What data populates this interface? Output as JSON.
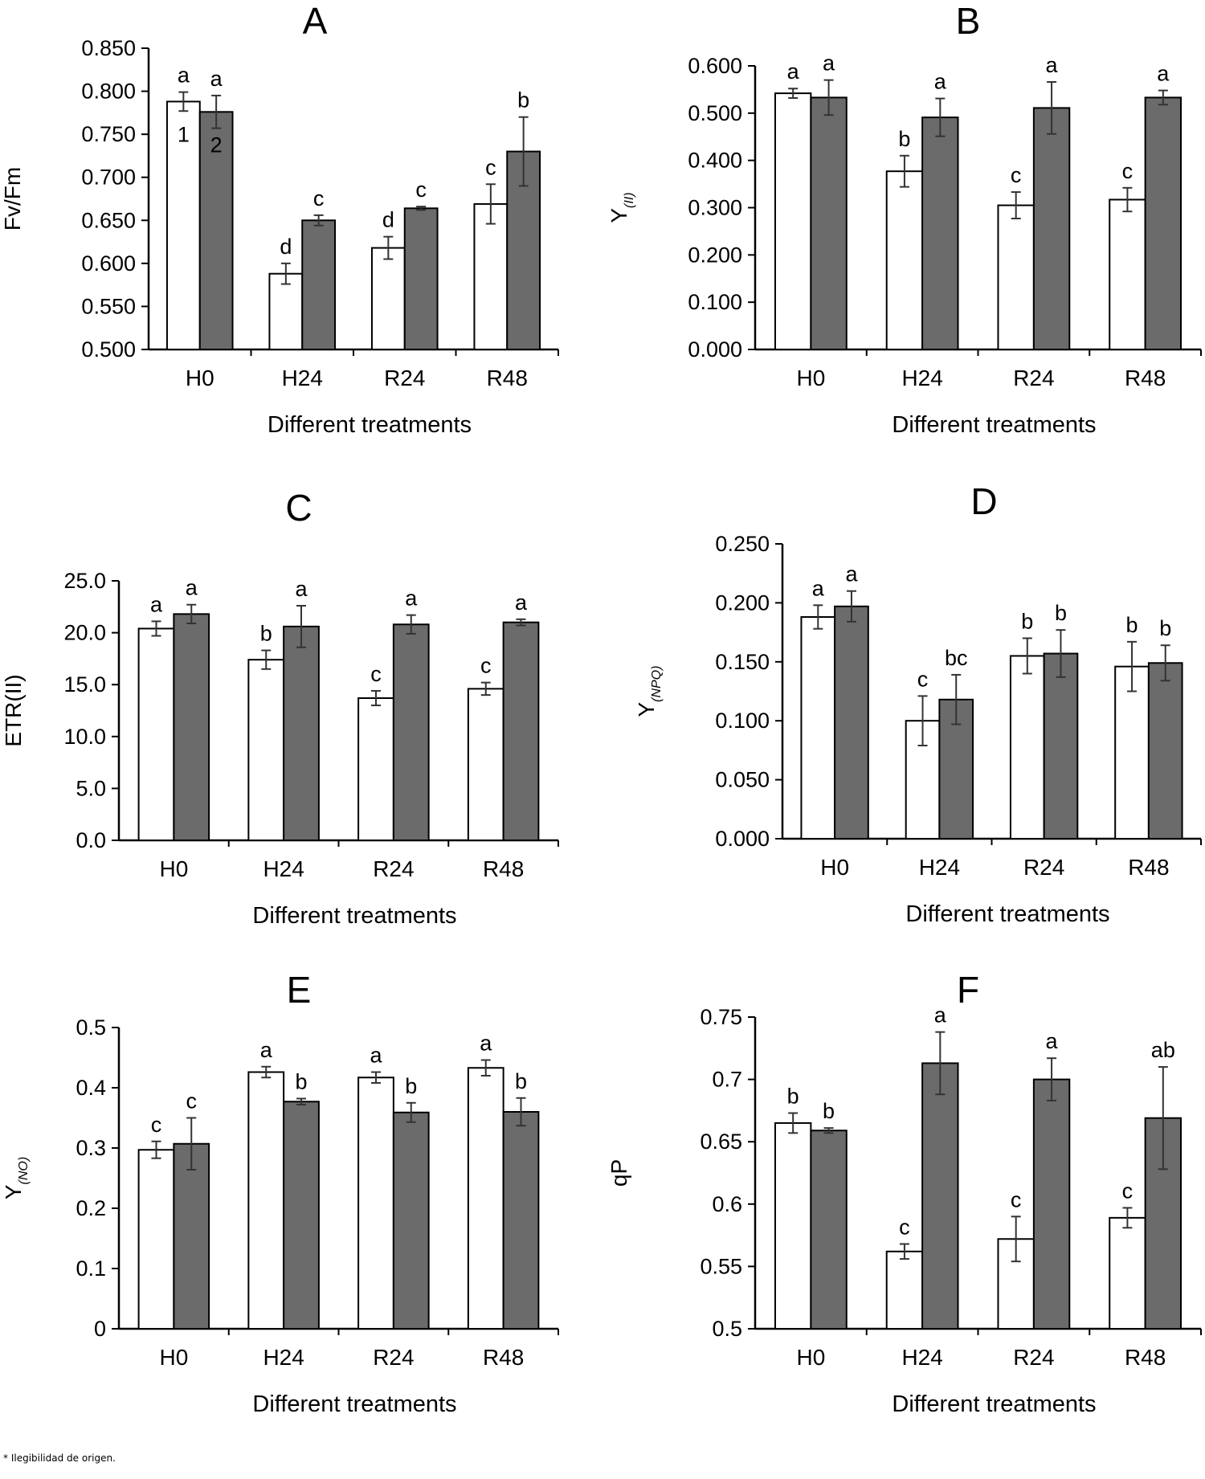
{
  "footnote": "* Ilegibilidad de origen.",
  "colors": {
    "series1": "#ffffff",
    "series2": "#6b6b6b",
    "axis": "#000000",
    "errorbar": "#333333"
  },
  "chart_data": [
    {
      "panel": "A",
      "type": "bar",
      "title": "A",
      "ylabel": "Fv/Fm",
      "ylabel_sub": "",
      "xlabel": "Different treatments",
      "categories": [
        "H0",
        "H24",
        "R24",
        "R48"
      ],
      "ylim": [
        0.5,
        0.85
      ],
      "yticks": [
        "0.500",
        "0.550",
        "0.600",
        "0.650",
        "0.700",
        "0.750",
        "0.800",
        "0.850"
      ],
      "series_markers": [
        "1",
        "2"
      ],
      "series": [
        {
          "name": "1",
          "values": [
            0.788,
            0.588,
            0.618,
            0.669
          ],
          "errors": [
            0.011,
            0.012,
            0.013,
            0.023
          ],
          "letters": [
            "a",
            "d",
            "d",
            "c"
          ]
        },
        {
          "name": "2",
          "values": [
            0.776,
            0.65,
            0.664,
            0.73
          ],
          "errors": [
            0.019,
            0.006,
            0.002,
            0.04
          ],
          "letters": [
            "a",
            "c",
            "c",
            "b"
          ]
        }
      ]
    },
    {
      "panel": "B",
      "type": "bar",
      "title": "B",
      "ylabel": "Y",
      "ylabel_sub": "(II)",
      "xlabel": "Different treatments",
      "categories": [
        "H0",
        "H24",
        "R24",
        "R48"
      ],
      "ylim": [
        0,
        0.6
      ],
      "yticks": [
        "0.000",
        "0.100",
        "0.200",
        "0.300",
        "0.400",
        "0.500",
        "0.600"
      ],
      "series_markers": [],
      "series": [
        {
          "name": "1",
          "values": [
            0.542,
            0.377,
            0.305,
            0.317
          ],
          "errors": [
            0.01,
            0.033,
            0.028,
            0.025
          ],
          "letters": [
            "a",
            "b",
            "c",
            "c"
          ]
        },
        {
          "name": "2",
          "values": [
            0.533,
            0.491,
            0.511,
            0.533
          ],
          "errors": [
            0.037,
            0.04,
            0.055,
            0.015
          ],
          "letters": [
            "a",
            "a",
            "a",
            "a"
          ]
        }
      ]
    },
    {
      "panel": "C",
      "type": "bar",
      "title": "C",
      "ylabel": "ETR(II)",
      "ylabel_sub": "",
      "xlabel": "Different treatments",
      "categories": [
        "H0",
        "H24",
        "R24",
        "R48"
      ],
      "ylim": [
        0,
        25
      ],
      "yticks": [
        "0.0",
        "5.0",
        "10.0",
        "15.0",
        "20.0",
        "25.0"
      ],
      "series_markers": [],
      "series": [
        {
          "name": "1",
          "values": [
            20.4,
            17.4,
            13.7,
            14.6
          ],
          "errors": [
            0.7,
            0.9,
            0.7,
            0.6
          ],
          "letters": [
            "a",
            "b",
            "c",
            "c"
          ]
        },
        {
          "name": "2",
          "values": [
            21.8,
            20.6,
            20.8,
            21.0
          ],
          "errors": [
            0.9,
            2.0,
            0.9,
            0.3
          ],
          "letters": [
            "a",
            "a",
            "a",
            "a"
          ]
        }
      ]
    },
    {
      "panel": "D",
      "type": "bar",
      "title": "D",
      "ylabel": "Y",
      "ylabel_sub": "(NPQ)",
      "xlabel": "Different treatments",
      "categories": [
        "H0",
        "H24",
        "R24",
        "R48"
      ],
      "ylim": [
        0,
        0.25
      ],
      "yticks": [
        "0.000",
        "0.050",
        "0.100",
        "0.150",
        "0.200",
        "0.250"
      ],
      "series_markers": [],
      "series": [
        {
          "name": "1",
          "values": [
            0.188,
            0.1,
            0.155,
            0.146
          ],
          "errors": [
            0.01,
            0.021,
            0.015,
            0.021
          ],
          "letters": [
            "a",
            "c",
            "b",
            "b"
          ]
        },
        {
          "name": "2",
          "values": [
            0.197,
            0.118,
            0.157,
            0.149
          ],
          "errors": [
            0.013,
            0.021,
            0.02,
            0.015
          ],
          "letters": [
            "a",
            "bc",
            "b",
            "b"
          ]
        }
      ]
    },
    {
      "panel": "E",
      "type": "bar",
      "title": "E",
      "ylabel": "Y",
      "ylabel_sub": "(NO)",
      "xlabel": "Different treatments",
      "categories": [
        "H0",
        "H24",
        "R24",
        "R48"
      ],
      "ylim": [
        0,
        0.5
      ],
      "yticks": [
        "0",
        "0.1",
        "0.2",
        "0.3",
        "0.4",
        "0.5"
      ],
      "series_markers": [],
      "series": [
        {
          "name": "1",
          "values": [
            0.297,
            0.426,
            0.417,
            0.433
          ],
          "errors": [
            0.014,
            0.009,
            0.009,
            0.013
          ],
          "letters": [
            "c",
            "a",
            "a",
            "a"
          ]
        },
        {
          "name": "2",
          "values": [
            0.307,
            0.377,
            0.359,
            0.36
          ],
          "errors": [
            0.043,
            0.005,
            0.016,
            0.023
          ],
          "letters": [
            "c",
            "b",
            "b",
            "b"
          ]
        }
      ]
    },
    {
      "panel": "F",
      "type": "bar",
      "title": "F",
      "ylabel": "qP",
      "ylabel_sub": "",
      "xlabel": "Different treatments",
      "categories": [
        "H0",
        "H24",
        "R24",
        "R48"
      ],
      "ylim": [
        0.5,
        0.75
      ],
      "yticks": [
        "0.5",
        "0.55",
        "0.6",
        "0.65",
        "0.7",
        "0.75"
      ],
      "series_markers": [],
      "series": [
        {
          "name": "1",
          "values": [
            0.665,
            0.562,
            0.572,
            0.589
          ],
          "errors": [
            0.008,
            0.006,
            0.018,
            0.008
          ],
          "letters": [
            "b",
            "c",
            "c",
            "c"
          ]
        },
        {
          "name": "2",
          "values": [
            0.659,
            0.713,
            0.7,
            0.669
          ],
          "errors": [
            0.002,
            0.025,
            0.017,
            0.041
          ],
          "letters": [
            "b",
            "a",
            "a",
            "ab"
          ]
        }
      ]
    }
  ]
}
